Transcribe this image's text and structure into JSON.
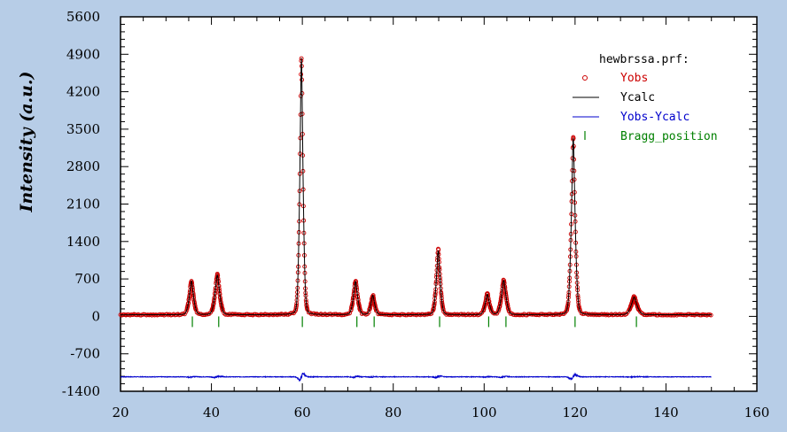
{
  "chart_data": {
    "type": "line",
    "title": "",
    "xlabel": "",
    "ylabel": "Intensity (a.u.)",
    "xlim": [
      20,
      160
    ],
    "ylim": [
      -1400,
      5600
    ],
    "x_ticks": [
      "20",
      "40",
      "60",
      "80",
      "100",
      "120",
      "140",
      "160"
    ],
    "y_ticks": [
      "5600",
      "4900",
      "4200",
      "3500",
      "2800",
      "2100",
      "1400",
      "700",
      "0",
      "-700",
      "-1400"
    ],
    "x_tick_values": [
      20,
      40,
      60,
      80,
      100,
      120,
      140,
      160
    ],
    "y_tick_values": [
      5600,
      4900,
      4200,
      3500,
      2800,
      2100,
      1400,
      700,
      0,
      -700,
      -1400
    ],
    "grid": false,
    "legend": {
      "position": "top-right",
      "title": "hewbrssa.prf:",
      "entries": [
        {
          "label": "Yobs",
          "color": "#cc0000",
          "marker": "circle"
        },
        {
          "label": "Ycalc",
          "color": "#000000",
          "marker": "line"
        },
        {
          "label": "Yobs-Ycalc",
          "color": "#0000cc",
          "marker": "line"
        },
        {
          "label": "Bragg_position",
          "color": "#008000",
          "marker": "tick"
        }
      ]
    },
    "x_range": [
      20,
      150
    ],
    "background_level": 30,
    "peaks": [
      {
        "x": 35.6,
        "height": 630,
        "width": 0.55
      },
      {
        "x": 41.3,
        "height": 740,
        "width": 0.6
      },
      {
        "x": 59.8,
        "height": 4800,
        "width": 0.42
      },
      {
        "x": 71.7,
        "height": 620,
        "width": 0.55
      },
      {
        "x": 75.5,
        "height": 360,
        "width": 0.5
      },
      {
        "x": 89.9,
        "height": 1200,
        "width": 0.5
      },
      {
        "x": 100.7,
        "height": 380,
        "width": 0.55
      },
      {
        "x": 104.3,
        "height": 640,
        "width": 0.6
      },
      {
        "x": 119.6,
        "height": 3300,
        "width": 0.5
      },
      {
        "x": 133.0,
        "height": 330,
        "width": 0.75
      }
    ],
    "bragg_positions": [
      35.8,
      41.6,
      60.0,
      72.0,
      75.8,
      90.2,
      101.0,
      104.8,
      120.0,
      133.5
    ],
    "bragg_y": -100,
    "difference_offset": -1130
  }
}
